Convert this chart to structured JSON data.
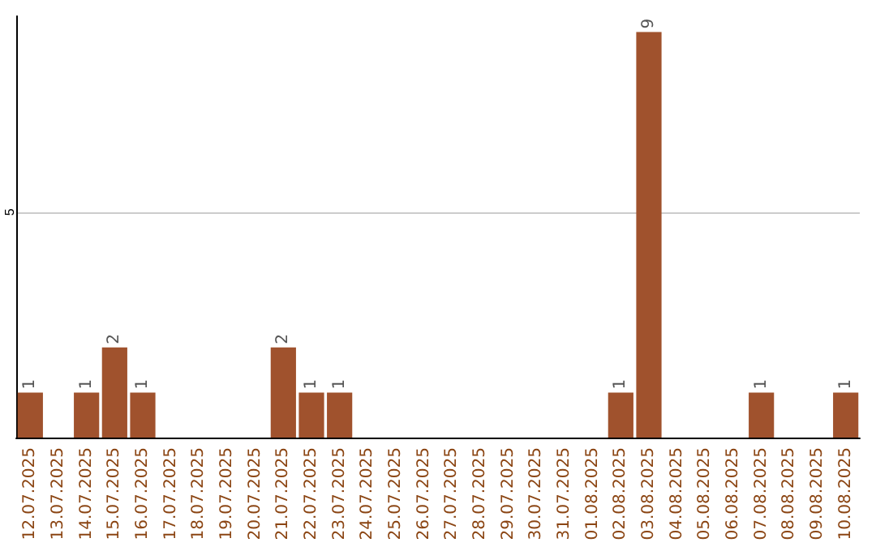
{
  "chart_data": {
    "type": "bar",
    "categories": [
      "12.07.2025",
      "13.07.2025",
      "14.07.2025",
      "15.07.2025",
      "16.07.2025",
      "17.07.2025",
      "18.07.2025",
      "19.07.2025",
      "20.07.2025",
      "21.07.2025",
      "22.07.2025",
      "23.07.2025",
      "24.07.2025",
      "25.07.2025",
      "26.07.2025",
      "27.07.2025",
      "28.07.2025",
      "29.07.2025",
      "30.07.2025",
      "31.07.2025",
      "01.08.2025",
      "02.08.2025",
      "03.08.2025",
      "04.08.2025",
      "05.08.2025",
      "06.08.2025",
      "07.08.2025",
      "08.08.2025",
      "09.08.2025",
      "10.08.2025"
    ],
    "values": [
      1,
      0,
      1,
      2,
      1,
      0,
      0,
      0,
      0,
      2,
      1,
      1,
      0,
      0,
      0,
      0,
      0,
      0,
      0,
      0,
      0,
      1,
      9,
      0,
      0,
      0,
      1,
      0,
      0,
      1
    ],
    "value_labels": [
      "1",
      null,
      "1",
      "2",
      "1",
      null,
      null,
      null,
      null,
      "2",
      "1",
      "1",
      null,
      null,
      null,
      null,
      null,
      null,
      null,
      null,
      null,
      "1",
      "9",
      null,
      null,
      null,
      "1",
      null,
      null,
      "1"
    ],
    "color": "#a0522d",
    "ylim": [
      0,
      9.35
    ],
    "yticks": [
      {
        "value": 0,
        "label": null
      },
      5
    ],
    "grid": "y"
  }
}
